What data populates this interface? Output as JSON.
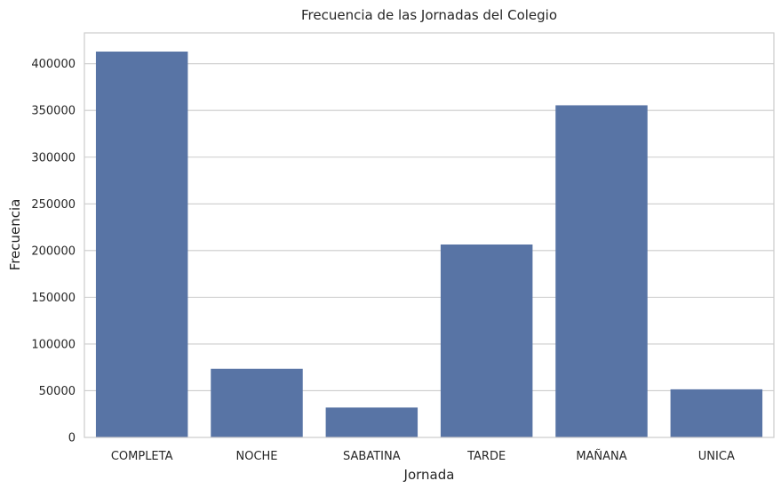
{
  "chart_data": {
    "type": "bar",
    "title": "Frecuencia de las Jornadas del Colegio",
    "xlabel": "Jornada",
    "ylabel": "Frecuencia",
    "categories": [
      "COMPLETA",
      "NOCHE",
      "SABATINA",
      "TARDE",
      "MAÑANA",
      "UNICA"
    ],
    "values": [
      413000,
      73500,
      32000,
      206500,
      355500,
      51500
    ],
    "ylim": [
      0,
      433000
    ],
    "yticks": [
      0,
      50000,
      100000,
      150000,
      200000,
      250000,
      300000,
      350000,
      400000
    ],
    "grid": "horizontal",
    "bar_color": "#5874a5",
    "grid_color": "#cccccc",
    "background": "#ffffff"
  }
}
